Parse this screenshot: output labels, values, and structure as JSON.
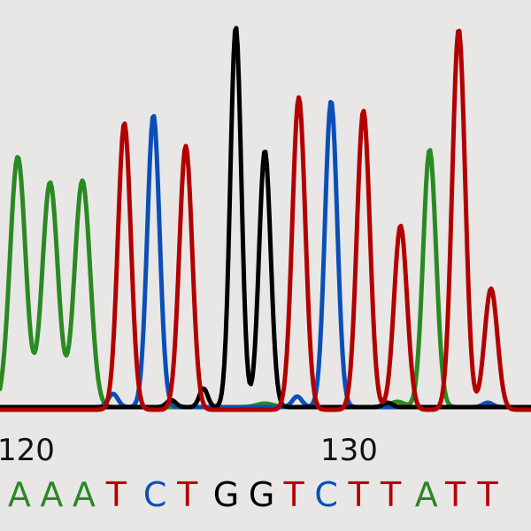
{
  "chart_data": {
    "type": "line",
    "title": "",
    "xlabel": "",
    "ylabel": "",
    "x_ticks": [
      120,
      130
    ],
    "colors": {
      "A": "#2a8a22",
      "C": "#0a4fb8",
      "G": "#000000",
      "T": "#b30000"
    },
    "sequence": [
      {
        "base": "A",
        "position": 119.6
      },
      {
        "base": "A",
        "position": 120.6
      },
      {
        "base": "A",
        "position": 121.6
      },
      {
        "base": "T",
        "position": 122.6
      },
      {
        "base": "C",
        "position": 123.8
      },
      {
        "base": "T",
        "position": 124.8
      },
      {
        "base": "G",
        "position": 126.0
      },
      {
        "base": "G",
        "position": 127.1
      },
      {
        "base": "T",
        "position": 128.1
      },
      {
        "base": "C",
        "position": 129.1
      },
      {
        "base": "T",
        "position": 130.1
      },
      {
        "base": "T",
        "position": 131.1
      },
      {
        "base": "A",
        "position": 132.2
      },
      {
        "base": "T",
        "position": 133.1
      },
      {
        "base": "T",
        "position": 134.1
      }
    ],
    "series": [
      {
        "name": "A",
        "baseline": 3,
        "peaks": [
          {
            "x": 119.55,
            "h": 283,
            "w": 0.24
          },
          {
            "x": 120.55,
            "h": 254,
            "w": 0.24
          },
          {
            "x": 121.55,
            "h": 256,
            "w": 0.24
          },
          {
            "x": 132.3,
            "h": 291,
            "w": 0.2
          },
          {
            "x": 127.2,
            "h": 4,
            "w": 0.25
          },
          {
            "x": 131.3,
            "h": 6,
            "w": 0.22
          }
        ]
      },
      {
        "name": "C",
        "baseline": 3,
        "peaks": [
          {
            "x": 123.75,
            "h": 330,
            "w": 0.19
          },
          {
            "x": 129.25,
            "h": 346,
            "w": 0.19
          },
          {
            "x": 122.5,
            "h": 15,
            "w": 0.15
          },
          {
            "x": 128.2,
            "h": 12,
            "w": 0.15
          },
          {
            "x": 134.1,
            "h": 5,
            "w": 0.15
          }
        ]
      },
      {
        "name": "G",
        "baseline": 3,
        "peaks": [
          {
            "x": 126.3,
            "h": 430,
            "w": 0.17
          },
          {
            "x": 127.2,
            "h": 290,
            "w": 0.18
          },
          {
            "x": 124.3,
            "h": 8,
            "w": 0.14
          },
          {
            "x": 125.3,
            "h": 21,
            "w": 0.13
          },
          {
            "x": 131.0,
            "h": 5,
            "w": 0.14
          }
        ]
      },
      {
        "name": "T",
        "baseline": 0,
        "peaks": [
          {
            "x": 122.85,
            "h": 324,
            "w": 0.2
          },
          {
            "x": 124.75,
            "h": 298,
            "w": 0.2
          },
          {
            "x": 128.25,
            "h": 353,
            "w": 0.2
          },
          {
            "x": 130.25,
            "h": 338,
            "w": 0.2
          },
          {
            "x": 131.4,
            "h": 208,
            "w": 0.2
          },
          {
            "x": 133.2,
            "h": 430,
            "w": 0.2
          },
          {
            "x": 134.2,
            "h": 137,
            "w": 0.2
          }
        ]
      }
    ]
  }
}
